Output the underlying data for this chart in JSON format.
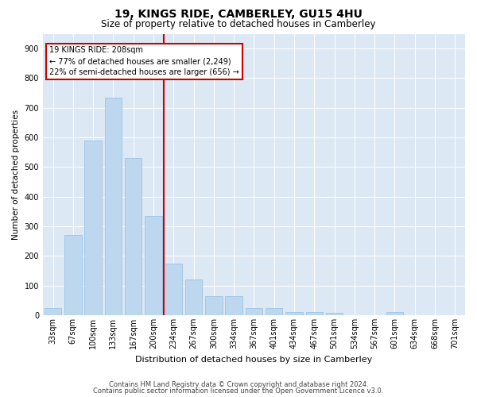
{
  "title": "19, KINGS RIDE, CAMBERLEY, GU15 4HU",
  "subtitle": "Size of property relative to detached houses in Camberley",
  "xlabel": "Distribution of detached houses by size in Camberley",
  "ylabel": "Number of detached properties",
  "categories": [
    "33sqm",
    "67sqm",
    "100sqm",
    "133sqm",
    "167sqm",
    "200sqm",
    "234sqm",
    "267sqm",
    "300sqm",
    "334sqm",
    "367sqm",
    "401sqm",
    "434sqm",
    "467sqm",
    "501sqm",
    "534sqm",
    "567sqm",
    "601sqm",
    "634sqm",
    "668sqm",
    "701sqm"
  ],
  "values": [
    25,
    270,
    590,
    735,
    530,
    335,
    175,
    120,
    65,
    65,
    25,
    25,
    10,
    10,
    8,
    0,
    0,
    10,
    0,
    0,
    0
  ],
  "bar_color": "#BDD7EE",
  "bar_edge_color": "#9DC3E6",
  "annotation_title": "19 KINGS RIDE: 208sqm",
  "annotation_line1": "← 77% of detached houses are smaller (2,249)",
  "annotation_line2": "22% of semi-detached houses are larger (656) →",
  "annotation_box_color": "#FFFFFF",
  "annotation_box_edge": "#CC0000",
  "vline_color": "#CC0000",
  "vline_index": 5,
  "background_color": "#DCE9F5",
  "grid_color": "#FFFFFF",
  "ylim": [
    0,
    950
  ],
  "yticks": [
    0,
    100,
    200,
    300,
    400,
    500,
    600,
    700,
    800,
    900
  ],
  "title_fontsize": 10,
  "subtitle_fontsize": 8.5,
  "ylabel_fontsize": 7.5,
  "xlabel_fontsize": 8,
  "tick_fontsize": 7,
  "annotation_fontsize": 7,
  "footer1": "Contains HM Land Registry data © Crown copyright and database right 2024.",
  "footer2": "Contains public sector information licensed under the Open Government Licence v3.0.",
  "footer_fontsize": 6
}
